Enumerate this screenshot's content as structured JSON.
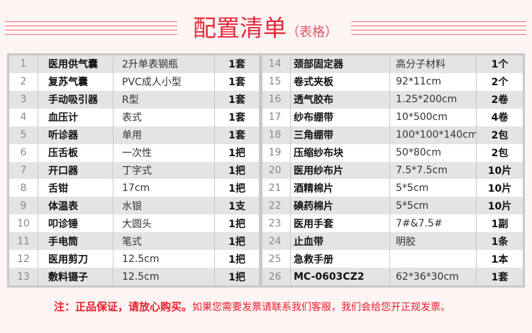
{
  "title": {
    "main": "配置清单",
    "sub": "（表格）"
  },
  "left_rows": [
    {
      "no": "1",
      "name": "医用供气囊",
      "spec": "2升单表钢瓶",
      "qty": "1套"
    },
    {
      "no": "2",
      "name": "复苏气囊",
      "spec": "PVC成人小型",
      "qty": "1套"
    },
    {
      "no": "3",
      "name": "手动吸引器",
      "spec": "R型",
      "qty": "1套"
    },
    {
      "no": "4",
      "name": "血压计",
      "spec": "表式",
      "qty": "1套"
    },
    {
      "no": "5",
      "name": "听诊器",
      "spec": "单用",
      "qty": "1套"
    },
    {
      "no": "6",
      "name": "压舌板",
      "spec": "一次性",
      "qty": "1把"
    },
    {
      "no": "7",
      "name": "开口器",
      "spec": "丁字式",
      "qty": "1把"
    },
    {
      "no": "8",
      "name": "舌钳",
      "spec": "17cm",
      "qty": "1把"
    },
    {
      "no": "9",
      "name": "体温表",
      "spec": "水银",
      "qty": "1支"
    },
    {
      "no": "10",
      "name": "叩诊锤",
      "spec": "大圆头",
      "qty": "1把"
    },
    {
      "no": "11",
      "name": "手电筒",
      "spec": "笔式",
      "qty": "1把"
    },
    {
      "no": "12",
      "name": "医用剪刀",
      "spec": "12.5cm",
      "qty": "1把"
    },
    {
      "no": "13",
      "name": "敷料镊子",
      "spec": "12.5cm",
      "qty": "1把"
    }
  ],
  "right_rows": [
    {
      "no": "14",
      "name": "颈部固定器",
      "spec": "高分子材料",
      "qty": "1个"
    },
    {
      "no": "15",
      "name": "卷式夹板",
      "spec": "92*11cm",
      "qty": "2个"
    },
    {
      "no": "16",
      "name": "透气胶布",
      "spec": "1.25*200cm",
      "qty": "2卷"
    },
    {
      "no": "17",
      "name": "纱布绷带",
      "spec": "10*500cm",
      "qty": "4卷"
    },
    {
      "no": "18",
      "name": "三角绷带",
      "spec": "100*100*140cm",
      "qty": "2包"
    },
    {
      "no": "19",
      "name": "压缩纱布块",
      "spec": "50*80cm",
      "qty": "2包"
    },
    {
      "no": "20",
      "name": "医用纱布片",
      "spec": "7.5*7.5cm",
      "qty": "10片"
    },
    {
      "no": "21",
      "name": "酒精棉片",
      "spec": "5*5cm",
      "qty": "10片"
    },
    {
      "no": "22",
      "name": "碘药棉片",
      "spec": "5*5cm",
      "qty": "10片"
    },
    {
      "no": "23",
      "name": "医用手套",
      "spec": "7#&7.5#",
      "qty": "1副"
    },
    {
      "no": "24",
      "name": "止血带",
      "spec": "明胶",
      "qty": "1条"
    },
    {
      "no": "25",
      "name": "急救手册",
      "spec": "",
      "qty": "1本"
    },
    {
      "no": "26",
      "name": "MC-0603CZ2",
      "spec": "62*36*30cm",
      "qty": "1套"
    }
  ],
  "note": {
    "bold": "注：正品保证，请放心购买。",
    "normal": "如果您需要发票请联系我们客服，我们会给您开正规发票。"
  },
  "colors": {
    "accent": "#e52a3a",
    "row_alt": "#e4e4e4",
    "border": "#c8c8c8"
  }
}
